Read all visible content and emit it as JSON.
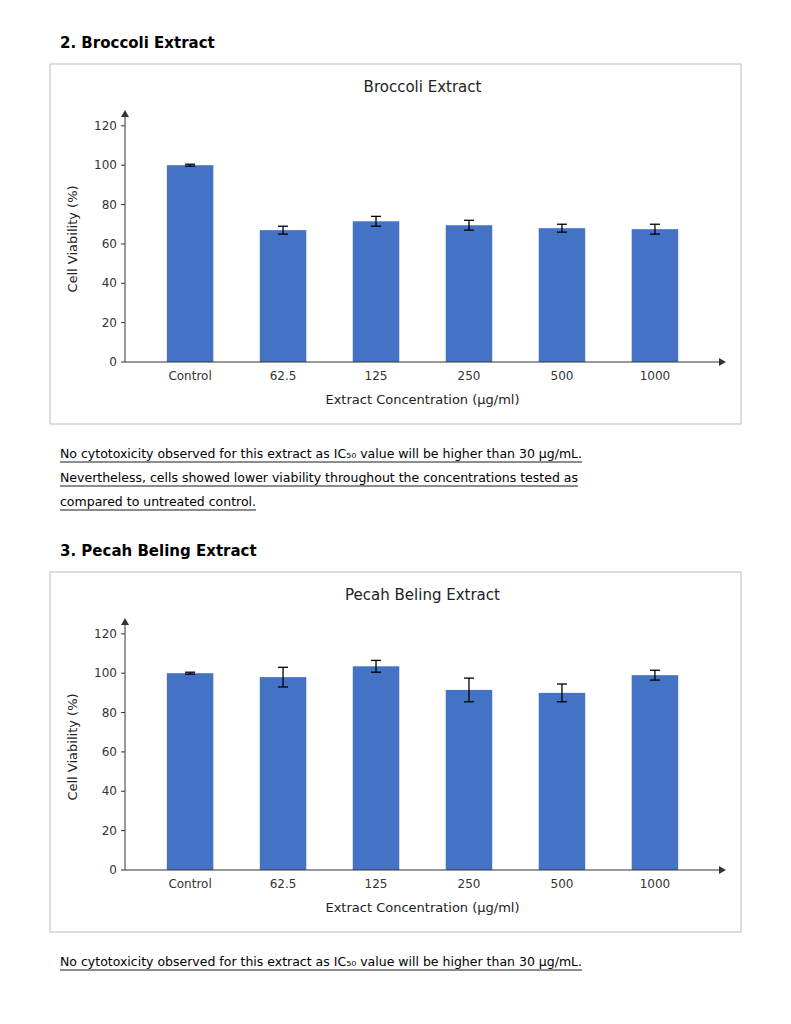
{
  "chart_data": [
    {
      "type": "bar",
      "title": "Broccoli Extract",
      "categories": [
        "Control",
        "62.5",
        "125",
        "250",
        "500",
        "1000"
      ],
      "values": [
        100.0,
        67.0,
        71.5,
        69.5,
        68.0,
        67.5
      ],
      "errors": [
        0.5,
        2.0,
        2.5,
        2.5,
        2.0,
        2.5
      ],
      "color": "#4472C4",
      "x_label": "Extract Concentration (µg/ml)",
      "y_label": "Cell Viability (%)",
      "ylim": [
        0,
        125
      ],
      "yticks": [
        0,
        20,
        40,
        60,
        80,
        100,
        120
      ],
      "grid": false,
      "annotations": [
        "2. Broccoli Extract",
        "No cytotoxicity observed for this extract as IC₅₀ value will be higher than 30 µg/mL.",
        "Nevertheless, cells showed lower viability throughout the concentrations tested as",
        "compared to untreated control."
      ]
    },
    {
      "type": "bar",
      "title": "Pecah Beling Extract",
      "categories": [
        "Control",
        "62.5",
        "125",
        "250",
        "500",
        "1000"
      ],
      "values": [
        100.0,
        98.0,
        103.5,
        91.5,
        90.0,
        99.0
      ],
      "errors": [
        0.5,
        5.0,
        3.0,
        6.0,
        4.5,
        2.5
      ],
      "color": "#4472C4",
      "x_label": "Extract Concentration (µg/ml)",
      "y_label": "Cell Viability (%)",
      "ylim": [
        0,
        125
      ],
      "yticks": [
        0,
        20,
        40,
        60,
        80,
        100,
        120
      ],
      "grid": false,
      "annotations": [
        "3. Pecah Beling Extract",
        "No cytotoxicity observed for this extract as IC₅₀ value will be higher than 30 µg/mL."
      ]
    }
  ]
}
